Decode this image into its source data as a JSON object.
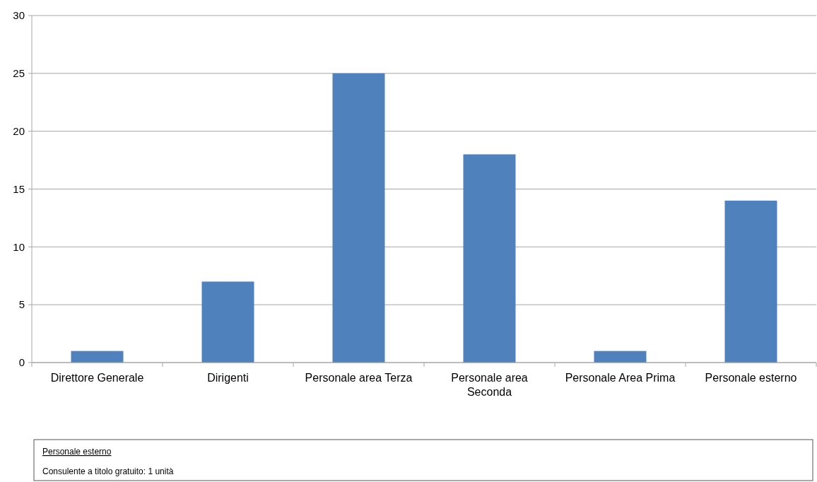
{
  "chart_data": {
    "type": "bar",
    "categories": [
      "Direttore Generale",
      "Dirigenti",
      "Personale area Terza",
      "Personale area Seconda",
      "Personale Area Prima",
      "Personale esterno"
    ],
    "values": [
      1,
      7,
      25,
      18,
      1,
      14
    ],
    "color": "#4f81bd",
    "ylim": [
      0,
      30
    ],
    "yticks": [
      0,
      5,
      10,
      15,
      20,
      25,
      30
    ],
    "grid": "y",
    "annotations": [
      "Personale esterno",
      "Consulente a titolo gratuito: 1 unità"
    ]
  }
}
